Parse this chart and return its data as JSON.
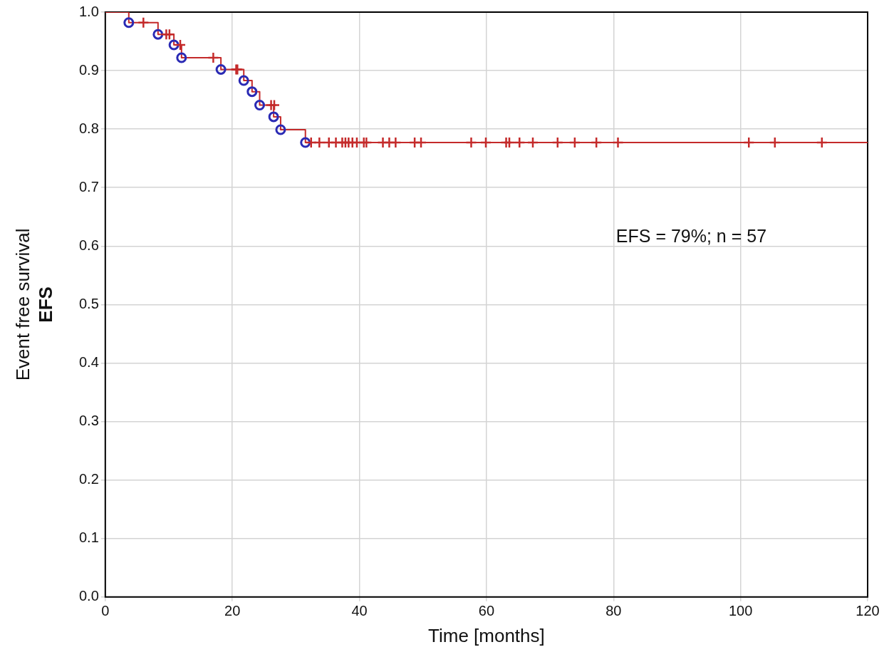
{
  "chart_data": {
    "type": "step",
    "ylabel": "Event free survival\nEFS",
    "xlabel": "Time [months]",
    "annotations": [
      "EFS = 79%; n = 57"
    ],
    "xlim": [
      0,
      120
    ],
    "xticks": [
      0,
      20,
      40,
      60,
      80,
      100,
      120
    ],
    "ylim": [
      0,
      1
    ],
    "yticks": [
      {
        "value": 0,
        "label": "0.0"
      },
      {
        "value": 0.1,
        "label": "0.1"
      },
      {
        "value": 0.2,
        "label": "0.2"
      },
      {
        "value": 0.3,
        "label": "0.3"
      },
      {
        "value": 0.4,
        "label": "0.4"
      },
      {
        "value": 0.5,
        "label": "0.5"
      },
      {
        "value": 0.6,
        "label": "0.6"
      },
      {
        "value": 0.7,
        "label": "0.7"
      },
      {
        "value": 0.8,
        "label": "0.8"
      },
      {
        "value": 0.9,
        "label": "0.9"
      },
      {
        "value": 1,
        "label": "1.0"
      }
    ],
    "grid": true,
    "legend": false,
    "series": [
      {
        "color": "#c42a2a",
        "marker": "none",
        "line_style": "solid",
        "x": [
          0,
          3.7,
          8.3,
          10.8,
          12.0,
          18.2,
          21.8,
          23.1,
          24.3,
          26.5,
          27.6,
          31.5,
          120
        ],
        "values": [
          1,
          0.982,
          0.962,
          0.944,
          0.922,
          0.902,
          0.883,
          0.864,
          0.841,
          0.821,
          0.799,
          0.777,
          0.777
        ]
      },
      {
        "type": "scatter",
        "color": "#2a2ab4",
        "marker": "circle",
        "x": [
          3.7,
          8.3,
          10.8,
          12.0,
          18.2,
          21.8,
          23.1,
          24.3,
          26.5,
          27.6,
          31.5
        ],
        "values": [
          0.982,
          0.962,
          0.944,
          0.922,
          0.902,
          0.883,
          0.864,
          0.841,
          0.821,
          0.799,
          0.777
        ]
      },
      {
        "type": "scatter",
        "color": "#c42a2a",
        "marker": "cross",
        "x": [
          6.0,
          9.6,
          10.1,
          11.8,
          17.0,
          20.6,
          20.8,
          26.1,
          26.6,
          32.4,
          33.7,
          35.2,
          36.3,
          37.3,
          37.8,
          38.3,
          38.9,
          39.6,
          40.7,
          41.1,
          43.7,
          44.7,
          45.7,
          48.7,
          49.7,
          57.6,
          59.9,
          63.1,
          63.6,
          65.2,
          67.3,
          71.2,
          73.9,
          77.3,
          80.7,
          101.3,
          105.4,
          112.8
        ],
        "values": [
          0.982,
          0.962,
          0.962,
          0.944,
          0.922,
          0.902,
          0.902,
          0.841,
          0.841,
          0.777,
          0.777,
          0.777,
          0.777,
          0.777,
          0.777,
          0.777,
          0.777,
          0.777,
          0.777,
          0.777,
          0.777,
          0.777,
          0.777,
          0.777,
          0.777,
          0.777,
          0.777,
          0.777,
          0.777,
          0.777,
          0.777,
          0.777,
          0.777,
          0.777,
          0.777,
          0.777,
          0.777,
          0.777
        ]
      }
    ]
  }
}
